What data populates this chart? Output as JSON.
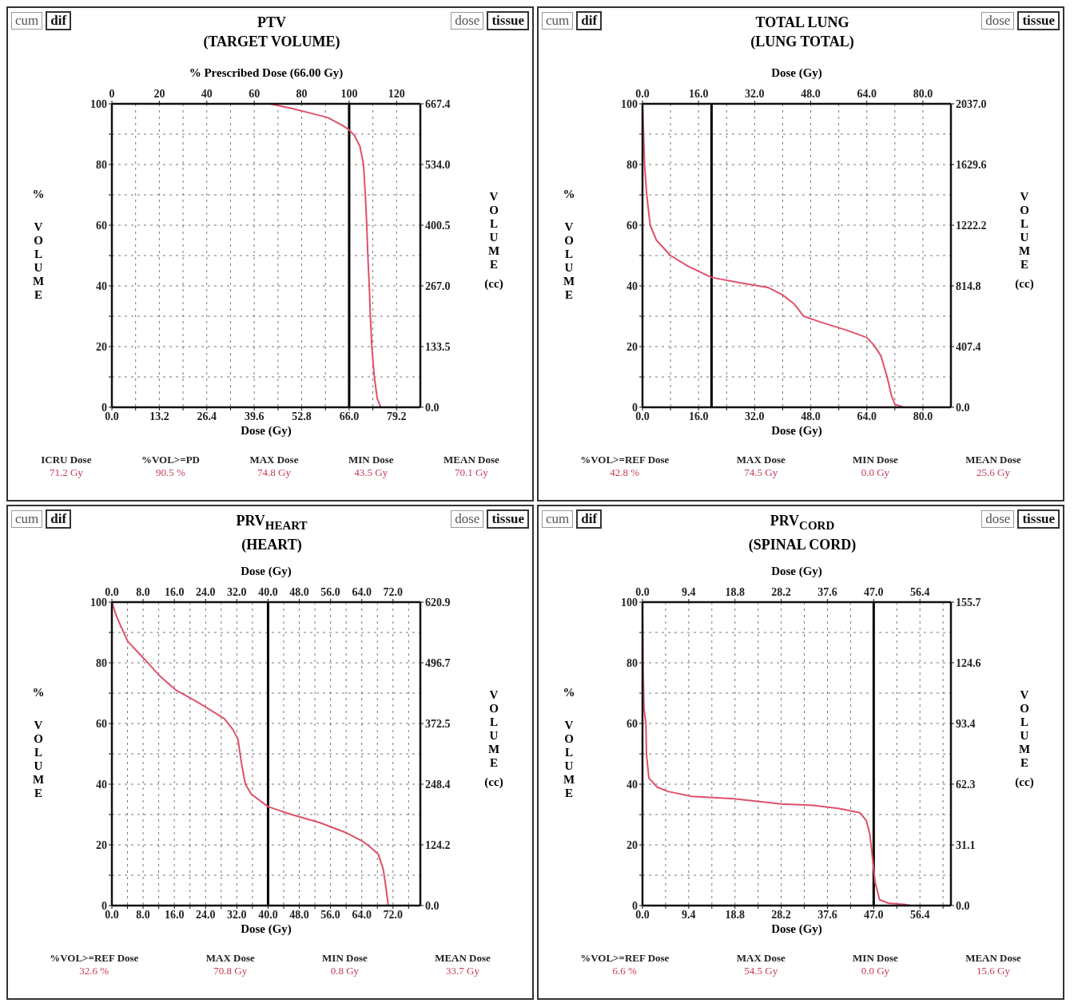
{
  "chart_data": [
    {
      "type": "line",
      "title": "PTV",
      "subtitle": "(TARGET VOLUME)",
      "xlabel": "Dose (Gy)",
      "x2label": "% Prescribed Dose (66.00 Gy)",
      "ylabel": "% VOLUME",
      "y2label": "VOLUME (cc)",
      "annotations": [
        "cum",
        "dif",
        "dose",
        "tissue",
        "ICRU Dose",
        "71.2 Gy",
        "%VOL>=PD",
        "90.5 %",
        "MAX Dose",
        "74.8 Gy",
        "MIN Dose",
        "43.5 Gy",
        "MEAN Dose",
        "70.1 Gy"
      ],
      "x": [
        0,
        44,
        46,
        50,
        55,
        60,
        64,
        66,
        67.5,
        69,
        70,
        70.5,
        70.9,
        71.2,
        71.6,
        71.9,
        72.3,
        73,
        73.8,
        74.8
      ],
      "series": [
        {
          "color": "#e0506a",
          "values": [
            100,
            100,
            99.5,
            98.5,
            97,
            95.5,
            93,
            91.4,
            89.5,
            86,
            80,
            70,
            60,
            50,
            40,
            30,
            20,
            10,
            3,
            0
          ]
        }
      ],
      "xlim": [
        0,
        85.8
      ],
      "xticks": [
        {
          "value": 0,
          "label": "0.0"
        },
        {
          "value": 6.6,
          "label": null
        },
        13.2,
        {
          "value": 19.8,
          "label": null
        },
        26.4,
        {
          "value": 33,
          "label": null
        },
        39.6,
        {
          "value": 46.2,
          "label": null
        },
        52.8,
        {
          "value": 59.4,
          "label": null
        },
        {
          "value": 66,
          "label": "66.0"
        },
        {
          "value": 72.6,
          "label": null
        },
        79.2
      ],
      "x2lim": [
        0,
        130
      ],
      "x2ticks": [
        0,
        20,
        40,
        60,
        80,
        100,
        120
      ],
      "ylim": [
        0,
        100
      ],
      "yticks": [
        0,
        {
          "value": 10,
          "label": null
        },
        20,
        {
          "value": 30,
          "label": null
        },
        40,
        {
          "value": 50,
          "label": null
        },
        60,
        {
          "value": 70,
          "label": null
        },
        80,
        {
          "value": 90,
          "label": null
        },
        100
      ],
      "y2lim": [
        0,
        667.4
      ],
      "y2ticks": [
        {
          "value": 0,
          "label": "0.0"
        },
        133.5,
        {
          "value": 267,
          "label": "267.0"
        },
        400.5,
        {
          "value": 534,
          "label": "534.0"
        },
        667.4
      ],
      "ref_lines": [
        {
          "axis": "x",
          "value": 66,
          "color": "#000000"
        }
      ],
      "grid": true
    },
    {
      "type": "line",
      "title": "TOTAL LUNG",
      "subtitle": "(LUNG TOTAL)",
      "xlabel": "Dose (Gy)",
      "x2label": "Dose (Gy)",
      "ylabel": "% VOLUME",
      "y2label": "VOLUME (cc)",
      "annotations": [
        "cum",
        "dif",
        "dose",
        "tissue",
        "%VOL>=REF Dose",
        "42.8 %",
        "MAX Dose",
        "74.5 Gy",
        "MIN Dose",
        "0.0 Gy",
        "MEAN Dose",
        "25.6 Gy"
      ],
      "x": [
        0,
        0.3,
        0.6,
        1.2,
        2.2,
        4,
        8,
        13,
        19.7,
        28,
        35.8,
        40,
        43.3,
        46,
        51,
        58,
        64,
        66,
        68,
        69.8,
        71,
        72,
        74.5
      ],
      "series": [
        {
          "color": "#e0506a",
          "values": [
            100,
            90,
            80,
            70,
            60,
            55,
            50,
            46.5,
            42.8,
            41,
            39.5,
            37,
            34,
            30,
            28,
            25.5,
            23,
            20.5,
            17,
            10,
            4,
            1,
            0
          ]
        }
      ],
      "xlim": [
        0,
        88
      ],
      "xticks": [
        {
          "value": 0,
          "label": "0.0"
        },
        {
          "value": 8,
          "label": null
        },
        {
          "value": 16,
          "label": "16.0"
        },
        {
          "value": 24,
          "label": null
        },
        {
          "value": 32,
          "label": "32.0"
        },
        {
          "value": 40,
          "label": null
        },
        {
          "value": 48,
          "label": "48.0"
        },
        {
          "value": 56,
          "label": null
        },
        {
          "value": 64,
          "label": "64.0"
        },
        {
          "value": 72,
          "label": null
        },
        {
          "value": 80,
          "label": "80.0"
        }
      ],
      "x2lim": [
        0,
        88
      ],
      "x2ticks": [
        {
          "value": 0,
          "label": "0.0"
        },
        {
          "value": 16,
          "label": "16.0"
        },
        {
          "value": 32,
          "label": "32.0"
        },
        {
          "value": 48,
          "label": "48.0"
        },
        {
          "value": 64,
          "label": "64.0"
        },
        {
          "value": 80,
          "label": "80.0"
        }
      ],
      "ylim": [
        0,
        100
      ],
      "yticks": [
        0,
        {
          "value": 10,
          "label": null
        },
        20,
        {
          "value": 30,
          "label": null
        },
        40,
        {
          "value": 50,
          "label": null
        },
        60,
        {
          "value": 70,
          "label": null
        },
        80,
        {
          "value": 90,
          "label": null
        },
        100
      ],
      "y2lim": [
        0,
        2037
      ],
      "y2ticks": [
        {
          "value": 0,
          "label": "0.0"
        },
        407.4,
        814.8,
        1222.2,
        1629.6,
        {
          "value": 2037,
          "label": "2037.0"
        }
      ],
      "ref_lines": [
        {
          "axis": "x",
          "value": 19.7,
          "color": "#000000"
        }
      ],
      "grid": true
    },
    {
      "type": "line",
      "title": "PRV$_{HEART}$",
      "subtitle": "(HEART)",
      "xlabel": "Dose (Gy)",
      "x2label": "Dose (Gy)",
      "ylabel": "% VOLUME",
      "y2label": "VOLUME (cc)",
      "annotations": [
        "cum",
        "dif",
        "dose",
        "tissue",
        "%VOL>=REF Dose",
        "32.6 %",
        "MAX Dose",
        "70.8 Gy",
        "MIN Dose",
        "0.8 Gy",
        "MEAN Dose",
        "33.7 Gy"
      ],
      "x": [
        0,
        1,
        2.4,
        4.1,
        8.5,
        12,
        16.4,
        22,
        28.8,
        31,
        32.3,
        33.2,
        34.2,
        35.7,
        40,
        46,
        53.3,
        60,
        63.8,
        66,
        68.2,
        69.5,
        70.3,
        70.8
      ],
      "series": [
        {
          "color": "#e0506a",
          "values": [
            100,
            96,
            91.7,
            87,
            81,
            76,
            71,
            67,
            61.6,
            58,
            54.8,
            46.8,
            40,
            36.7,
            32.6,
            30,
            27.3,
            24,
            21.5,
            19.5,
            17,
            12,
            5,
            0
          ]
        }
      ],
      "xlim": [
        0,
        79
      ],
      "xticks": [
        {
          "value": 0,
          "label": "0.0"
        },
        {
          "value": 4,
          "label": null
        },
        {
          "value": 8,
          "label": "8.0"
        },
        {
          "value": 12,
          "label": null
        },
        {
          "value": 16,
          "label": "16.0"
        },
        {
          "value": 20,
          "label": null
        },
        {
          "value": 24,
          "label": "24.0"
        },
        {
          "value": 28,
          "label": null
        },
        {
          "value": 32,
          "label": "32.0"
        },
        {
          "value": 36,
          "label": null
        },
        {
          "value": 40,
          "label": "40.0"
        },
        {
          "value": 44,
          "label": null
        },
        {
          "value": 48,
          "label": "48.0"
        },
        {
          "value": 52,
          "label": null
        },
        {
          "value": 56,
          "label": "56.0"
        },
        {
          "value": 60,
          "label": null
        },
        {
          "value": 64,
          "label": "64.0"
        },
        {
          "value": 68,
          "label": null
        },
        {
          "value": 72,
          "label": "72.0"
        },
        {
          "value": 76,
          "label": null
        }
      ],
      "x2lim": [
        0,
        79
      ],
      "x2ticks": [
        {
          "value": 0,
          "label": "0.0"
        },
        {
          "value": 8,
          "label": "8.0"
        },
        {
          "value": 16,
          "label": "16.0"
        },
        {
          "value": 24,
          "label": "24.0"
        },
        {
          "value": 32,
          "label": "32.0"
        },
        {
          "value": 40,
          "label": "40.0"
        },
        {
          "value": 48,
          "label": "48.0"
        },
        {
          "value": 56,
          "label": "56.0"
        },
        {
          "value": 64,
          "label": "64.0"
        },
        {
          "value": 72,
          "label": "72.0"
        }
      ],
      "ylim": [
        0,
        100
      ],
      "yticks": [
        0,
        {
          "value": 10,
          "label": null
        },
        20,
        {
          "value": 30,
          "label": null
        },
        40,
        {
          "value": 50,
          "label": null
        },
        60,
        {
          "value": 70,
          "label": null
        },
        80,
        {
          "value": 90,
          "label": null
        },
        100
      ],
      "y2lim": [
        0,
        620.9
      ],
      "y2ticks": [
        {
          "value": 0,
          "label": "0.0"
        },
        124.2,
        248.4,
        372.5,
        496.7,
        620.9
      ],
      "ref_lines": [
        {
          "axis": "x",
          "value": 40,
          "color": "#000000"
        }
      ],
      "grid": true
    },
    {
      "type": "line",
      "title": "PRV$_{CORD}$",
      "subtitle": "(SPINAL CORD)",
      "xlabel": "Dose (Gy)",
      "x2label": "Dose (Gy)",
      "ylabel": "% VOLUME",
      "y2label": "VOLUME (cc)",
      "annotations": [
        "cum",
        "dif",
        "dose",
        "tissue",
        "%VOL>=REF Dose",
        "6.6 %",
        "MAX Dose",
        "54.5 Gy",
        "MIN Dose",
        "0.0 Gy",
        "MEAN Dose",
        "15.6 Gy"
      ],
      "x": [
        0,
        0.1,
        0.3,
        0.7,
        0.8,
        1.3,
        3,
        5.2,
        10,
        18.6,
        28.2,
        34.7,
        40,
        44.2,
        45.5,
        46.2,
        46.8,
        47.3,
        48.2,
        50,
        53.6,
        54.5
      ],
      "series": [
        {
          "color": "#e0506a",
          "values": [
            100,
            80,
            65,
            60,
            50,
            42,
            39,
            37.6,
            36,
            35.2,
            33.5,
            33,
            32,
            30.6,
            28,
            23.7,
            15,
            7.6,
            1.9,
            0.8,
            0.3,
            0
          ]
        }
      ],
      "xlim": [
        0,
        62.7
      ],
      "xticks": [
        {
          "value": 0,
          "label": "0.0"
        },
        {
          "value": 4.7,
          "label": null
        },
        9.4,
        {
          "value": 14.1,
          "label": null
        },
        18.8,
        {
          "value": 23.5,
          "label": null
        },
        28.2,
        {
          "value": 32.9,
          "label": null
        },
        37.6,
        {
          "value": 42.3,
          "label": null
        },
        {
          "value": 47,
          "label": "47.0"
        },
        {
          "value": 51.7,
          "label": null
        },
        56.4,
        {
          "value": 61.1,
          "label": null
        }
      ],
      "x2lim": [
        0,
        62.7
      ],
      "x2ticks": [
        {
          "value": 0,
          "label": "0.0"
        },
        9.4,
        18.8,
        28.2,
        37.6,
        {
          "value": 47,
          "label": "47.0"
        },
        56.4
      ],
      "ylim": [
        0,
        100
      ],
      "yticks": [
        0,
        {
          "value": 10,
          "label": null
        },
        20,
        {
          "value": 30,
          "label": null
        },
        40,
        {
          "value": 50,
          "label": null
        },
        60,
        {
          "value": 70,
          "label": null
        },
        80,
        {
          "value": 90,
          "label": null
        },
        100
      ],
      "y2lim": [
        0,
        155.7
      ],
      "y2ticks": [
        {
          "value": 0,
          "label": "0.0"
        },
        31.1,
        62.3,
        93.4,
        124.6,
        155.7
      ],
      "ref_lines": [
        {
          "axis": "x",
          "value": 47,
          "color": "#000000"
        }
      ],
      "grid": true
    }
  ]
}
